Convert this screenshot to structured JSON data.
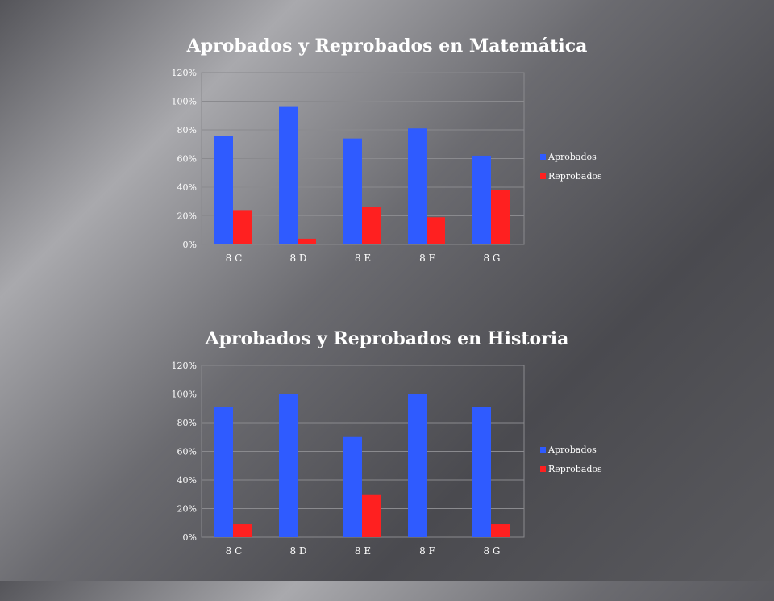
{
  "chart_data": [
    {
      "type": "bar",
      "title": "Aprobados y Reprobados en Matemática",
      "categories": [
        "8 C",
        "8 D",
        "8 E",
        "8 F",
        "8 G"
      ],
      "series": [
        {
          "name": "Aprobados",
          "color": "#2f5bff",
          "values": [
            76,
            96,
            74,
            81,
            62
          ]
        },
        {
          "name": "Reprobados",
          "color": "#ff2020",
          "values": [
            24,
            4,
            26,
            19,
            38
          ]
        }
      ],
      "yticks": [
        "0%",
        "20%",
        "40%",
        "60%",
        "80%",
        "100%",
        "120%"
      ],
      "ylim": [
        0,
        120
      ],
      "grid": true,
      "legend_position": "right"
    },
    {
      "type": "bar",
      "title": "Aprobados y Reprobados en Historia",
      "categories": [
        "8 C",
        "8 D",
        "8 E",
        "8 F",
        "8 G"
      ],
      "series": [
        {
          "name": "Aprobados",
          "color": "#2f5bff",
          "values": [
            91,
            100,
            70,
            100,
            91
          ]
        },
        {
          "name": "Reprobados",
          "color": "#ff2020",
          "values": [
            9,
            0,
            30,
            0,
            9
          ]
        }
      ],
      "yticks": [
        "0%",
        "20%",
        "40%",
        "60%",
        "80%",
        "100%",
        "120%"
      ],
      "ylim": [
        0,
        120
      ],
      "grid": true,
      "legend_position": "right"
    }
  ]
}
